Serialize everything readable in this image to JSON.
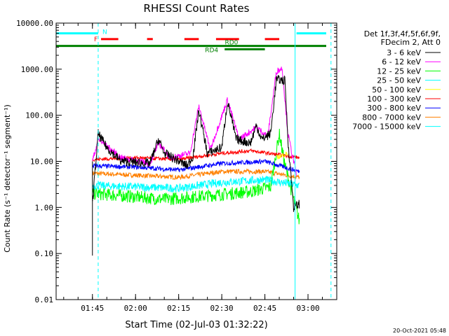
{
  "chart_data": {
    "type": "line",
    "title": "RHESSI Count Rates",
    "xlabel": "Start Time (02-Jul-03 01:32:22)",
    "ylabel": "Count Rate (s⁻¹ detector⁻¹ segment⁻¹)",
    "yscale": "log",
    "ylim": [
      0.01,
      10000
    ],
    "xlim": [
      "01:32:22",
      "03:10:00"
    ],
    "yticks": [
      "10000.00",
      "1000.00",
      "100.00",
      "10.00",
      "1.00",
      "0.10",
      "0.01"
    ],
    "xticks": [
      "01:45",
      "02:00",
      "02:15",
      "02:30",
      "02:45",
      "03:00"
    ],
    "legend_header": [
      "Det 1f,3f,4f,5f,6f,9f,",
      "FDecim 2, Att 0"
    ],
    "legend_position": "right",
    "series": [
      {
        "name": "3 - 6 keV",
        "color": "#000000"
      },
      {
        "name": "6 - 12 keV",
        "color": "#ff00ff"
      },
      {
        "name": "12 - 25 keV",
        "color": "#00ff00"
      },
      {
        "name": "25 - 50 keV",
        "color": "#00ffff"
      },
      {
        "name": "50 - 100 keV",
        "color": "#ffff00"
      },
      {
        "name": "100 - 300 keV",
        "color": "#ff0000"
      },
      {
        "name": "300 - 800 keV",
        "color": "#0000ff"
      },
      {
        "name": "800 - 7000 keV",
        "color": "#ff8000"
      },
      {
        "name": "7000 - 15000 keV",
        "color": "#00ffff"
      }
    ],
    "series_profiles": {
      "3 - 6 keV": [
        [
          "01:45:00",
          1.2
        ],
        [
          "01:47:00",
          40
        ],
        [
          "01:50:00",
          20
        ],
        [
          "01:55:00",
          10
        ],
        [
          "02:05:00",
          9
        ],
        [
          "02:08:00",
          30
        ],
        [
          "02:10:00",
          15
        ],
        [
          "02:18:00",
          8
        ],
        [
          "02:20:00",
          13
        ],
        [
          "02:22:00",
          130
        ],
        [
          "02:25:00",
          15
        ],
        [
          "02:30:00",
          20
        ],
        [
          "02:32:00",
          200
        ],
        [
          "02:35:00",
          30
        ],
        [
          "02:40:00",
          25
        ],
        [
          "02:42:00",
          60
        ],
        [
          "02:44:00",
          30
        ],
        [
          "02:47:00",
          40
        ],
        [
          "02:49:00",
          600
        ],
        [
          "02:52:00",
          560
        ],
        [
          "02:53:00",
          30
        ],
        [
          "02:55:00",
          1.0
        ],
        [
          "02:57:00",
          1.2
        ]
      ],
      "6 - 12 keV": [
        [
          "01:45:00",
          10
        ],
        [
          "01:47:00",
          30
        ],
        [
          "01:55:00",
          12
        ],
        [
          "02:05:00",
          9
        ],
        [
          "02:08:00",
          25
        ],
        [
          "02:12:00",
          12
        ],
        [
          "02:19:00",
          15
        ],
        [
          "02:22:00",
          160
        ],
        [
          "02:26:00",
          18
        ],
        [
          "02:32:00",
          220
        ],
        [
          "02:36:00",
          30
        ],
        [
          "02:42:00",
          55
        ],
        [
          "02:46:00",
          35
        ],
        [
          "02:49:00",
          900
        ],
        [
          "02:51:00",
          1050
        ],
        [
          "02:53:00",
          40
        ],
        [
          "02:56:00",
          5
        ]
      ],
      "12 - 25 keV": [
        [
          "01:45:00",
          2
        ],
        [
          "01:55:00",
          1.8
        ],
        [
          "02:10:00",
          1.5
        ],
        [
          "02:25:00",
          1.8
        ],
        [
          "02:40:00",
          2.2
        ],
        [
          "02:47:00",
          2.8
        ],
        [
          "02:50:00",
          40
        ],
        [
          "02:52:00",
          8
        ],
        [
          "02:55:00",
          1.5
        ],
        [
          "02:57:00",
          0.5
        ]
      ],
      "25 - 50 keV": [
        [
          "01:45:00",
          3
        ],
        [
          "02:00:00",
          2.8
        ],
        [
          "02:15:00",
          2.6
        ],
        [
          "02:30:00",
          3.5
        ],
        [
          "02:45:00",
          4
        ],
        [
          "02:57:00",
          3
        ]
      ],
      "50 - 100 keV": [
        [
          "02:49:00",
          12
        ],
        [
          "02:53:00",
          15
        ]
      ],
      "100 - 300 keV": [
        [
          "01:45:00",
          11
        ],
        [
          "02:00:00",
          12
        ],
        [
          "02:15:00",
          11
        ],
        [
          "02:30:00",
          15
        ],
        [
          "02:40:00",
          17
        ],
        [
          "02:57:00",
          12
        ]
      ],
      "300 - 800 keV": [
        [
          "01:45:00",
          8
        ],
        [
          "02:00:00",
          7.5
        ],
        [
          "02:15:00",
          6.5
        ],
        [
          "02:30:00",
          9
        ],
        [
          "02:45:00",
          10
        ],
        [
          "02:57:00",
          6
        ]
      ],
      "800 - 7000 keV": [
        [
          "01:45:00",
          5.5
        ],
        [
          "02:00:00",
          5
        ],
        [
          "02:15:00",
          4.5
        ],
        [
          "02:30:00",
          6
        ],
        [
          "02:45:00",
          6
        ],
        [
          "02:57:00",
          4.5
        ]
      ]
    },
    "attenuator_bars": [
      {
        "label": "N",
        "color": "#00ffff",
        "segments": [
          [
            "01:32:22",
            "01:47:00"
          ],
          [
            "02:56:00",
            "03:10:00"
          ]
        ],
        "level": 6000
      },
      {
        "label": "F",
        "color": "#ff0000",
        "segments": [
          [
            "01:48:00",
            "01:54:00"
          ],
          [
            "02:04:00",
            "02:06:00"
          ],
          [
            "02:17:00",
            "02:22:00"
          ],
          [
            "02:28:00",
            "02:36:00"
          ],
          [
            "02:45:00",
            "02:50:00"
          ]
        ],
        "level": 4500
      },
      {
        "label": "RD0",
        "color": "#008000",
        "segments": [
          [
            "01:32:22",
            "03:10:00"
          ]
        ],
        "level": 3200
      },
      {
        "label": "RD4",
        "color": "#008000",
        "segments": [
          [
            "02:31:00",
            "02:45:00"
          ]
        ],
        "level": 2700
      }
    ],
    "vertical_markers": [
      {
        "time": "01:32:22",
        "color": "#00ffff",
        "style": "solid"
      },
      {
        "time": "01:47:00",
        "color": "#00ffff",
        "style": "dashed"
      },
      {
        "time": "02:55:30",
        "color": "#00ffff",
        "style": "solid"
      },
      {
        "time": "03:08:00",
        "color": "#00ffff",
        "style": "dashed"
      }
    ],
    "data_start": "01:44:00",
    "data_end": "02:57:30",
    "grid": false
  },
  "timestamp": "20-Oct-2021 05:48"
}
